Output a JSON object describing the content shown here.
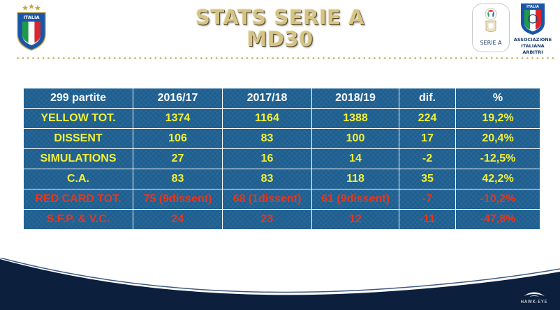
{
  "title": {
    "line1": "STATS SERIE A",
    "line2": "MD30"
  },
  "logos": {
    "figc_label": "ITALIA",
    "serie_a_label": "SERIE A",
    "aia_top_label": "ITALIA",
    "aia_lines": [
      "ASSOCIAZIONE",
      "ITALIANA",
      "ARBITRI"
    ],
    "footer_brand": "HAWK-EYE"
  },
  "table": {
    "header": [
      "299 partite",
      "2016/17",
      "2017/18",
      "2018/19",
      "dif.",
      "%"
    ],
    "rows": [
      {
        "style": "yellow",
        "cells": [
          "YELLOW TOT.",
          "1374",
          "1164",
          "1388",
          "224",
          "19,2%"
        ]
      },
      {
        "style": "yellow",
        "cells": [
          "DISSENT",
          "106",
          "83",
          "100",
          "17",
          "20,4%"
        ]
      },
      {
        "style": "yellow",
        "cells": [
          "SIMULATIONS",
          "27",
          "16",
          "14",
          "-2",
          "-12,5%"
        ]
      },
      {
        "style": "yellow",
        "cells": [
          "C.A.",
          "83",
          "83",
          "118",
          "35",
          "42,2%"
        ]
      },
      {
        "style": "red",
        "cells": [
          "RED CARD TOT.",
          "75 (9dissent)",
          "68 (1dissent)",
          "61 (9dissent)",
          "-7",
          "-10,2%"
        ]
      },
      {
        "style": "red",
        "cells": [
          "S.F.P. & V.C.",
          "24",
          "23",
          "12",
          "-11",
          "-47,8%"
        ]
      }
    ]
  },
  "colors": {
    "title_gold": "#d6c486",
    "table_blue": "#1e5f90",
    "header_text": "#ffffff",
    "yellow_text": "#f5f032",
    "red_text": "#e8361c",
    "footer_navy": "#0c1f3d"
  },
  "icons": {
    "figc_logo": "figc-shield-icon",
    "serie_a_logo": "serie-a-logo-icon",
    "aia_logo": "aia-logo-icon",
    "hawkeye_logo": "hawk-eye-icon"
  }
}
